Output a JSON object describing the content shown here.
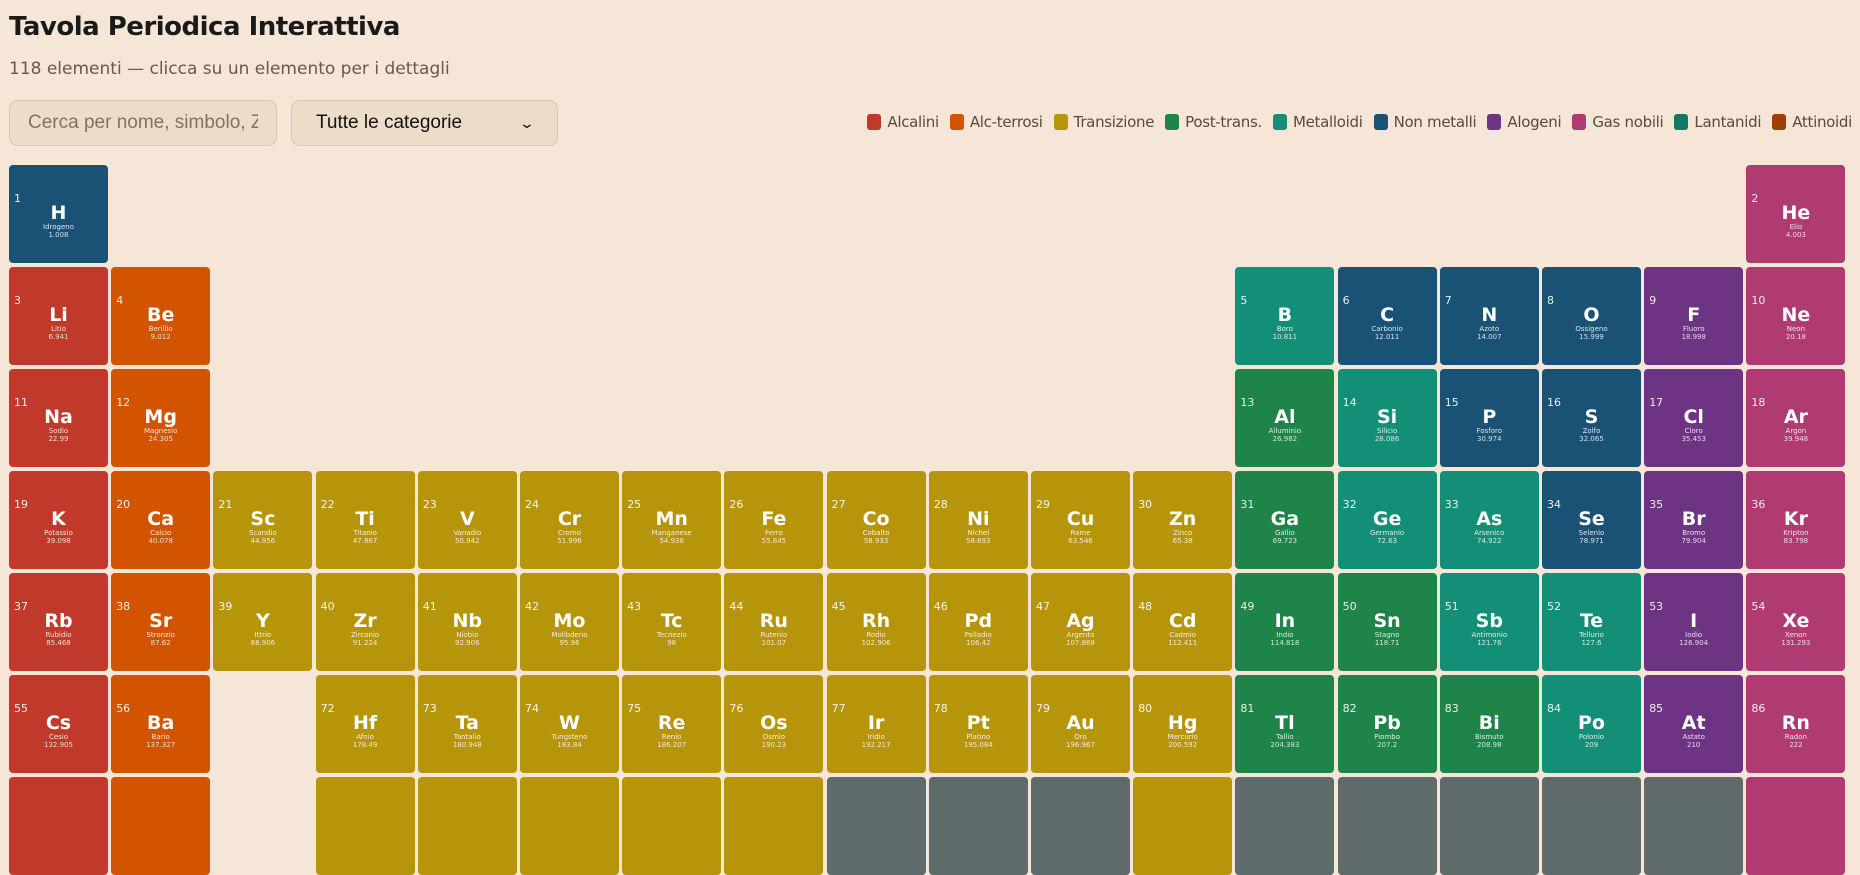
{
  "header": {
    "title": "Tavola Periodica Interattiva",
    "subtitle": "118 elementi — clicca su un elemento per i dettagli"
  },
  "controls": {
    "search_placeholder": "Cerca per nome, simbolo, Z",
    "search_value": "",
    "category_select": "Tutte le categorie",
    "chevron_icon": "chevron-down-icon"
  },
  "categories": {
    "alk": {
      "label": "Alcalini",
      "color": "#c0392b"
    },
    "ae": {
      "label": "Alc-terrosi",
      "color": "#d35400"
    },
    "tr": {
      "label": "Transizione",
      "color": "#b7950b"
    },
    "pt": {
      "label": "Post-trans.",
      "color": "#1e8449"
    },
    "md": {
      "label": "Metalloidi",
      "color": "#148f77"
    },
    "nm": {
      "label": "Non metalli",
      "color": "#1a5276"
    },
    "hal": {
      "label": "Alogeni",
      "color": "#6c3483"
    },
    "ng": {
      "label": "Gas nobili",
      "color": "#b03a72"
    },
    "lan": {
      "label": "Lantanidi",
      "color": "#117a65"
    },
    "act": {
      "label": "Attinoidi",
      "color": "#a04000"
    },
    "unk": {
      "label": "",
      "color": "#5f6a6a"
    }
  },
  "legend_order": [
    "alk",
    "ae",
    "tr",
    "pt",
    "md",
    "nm",
    "hal",
    "ng",
    "lan",
    "act"
  ],
  "elements": [
    {
      "z": "1",
      "sym": "H",
      "name": "Idrogeno",
      "mass": "1.008",
      "cat": "nm",
      "r": 1,
      "c": 1
    },
    {
      "z": "2",
      "sym": "He",
      "name": "Elio",
      "mass": "4.003",
      "cat": "ng",
      "r": 1,
      "c": 18
    },
    {
      "z": "3",
      "sym": "Li",
      "name": "Litio",
      "mass": "6.941",
      "cat": "alk",
      "r": 2,
      "c": 1
    },
    {
      "z": "4",
      "sym": "Be",
      "name": "Berillio",
      "mass": "9.012",
      "cat": "ae",
      "r": 2,
      "c": 2
    },
    {
      "z": "5",
      "sym": "B",
      "name": "Boro",
      "mass": "10.811",
      "cat": "md",
      "r": 2,
      "c": 13
    },
    {
      "z": "6",
      "sym": "C",
      "name": "Carbonio",
      "mass": "12.011",
      "cat": "nm",
      "r": 2,
      "c": 14
    },
    {
      "z": "7",
      "sym": "N",
      "name": "Azoto",
      "mass": "14.007",
      "cat": "nm",
      "r": 2,
      "c": 15
    },
    {
      "z": "8",
      "sym": "O",
      "name": "Ossigeno",
      "mass": "15.999",
      "cat": "nm",
      "r": 2,
      "c": 16
    },
    {
      "z": "9",
      "sym": "F",
      "name": "Fluoro",
      "mass": "18.998",
      "cat": "hal",
      "r": 2,
      "c": 17
    },
    {
      "z": "10",
      "sym": "Ne",
      "name": "Neon",
      "mass": "20.18",
      "cat": "ng",
      "r": 2,
      "c": 18
    },
    {
      "z": "11",
      "sym": "Na",
      "name": "Sodio",
      "mass": "22.99",
      "cat": "alk",
      "r": 3,
      "c": 1
    },
    {
      "z": "12",
      "sym": "Mg",
      "name": "Magnesio",
      "mass": "24.305",
      "cat": "ae",
      "r": 3,
      "c": 2
    },
    {
      "z": "13",
      "sym": "Al",
      "name": "Alluminio",
      "mass": "26.982",
      "cat": "pt",
      "r": 3,
      "c": 13
    },
    {
      "z": "14",
      "sym": "Si",
      "name": "Silicio",
      "mass": "28.086",
      "cat": "md",
      "r": 3,
      "c": 14
    },
    {
      "z": "15",
      "sym": "P",
      "name": "Fosforo",
      "mass": "30.974",
      "cat": "nm",
      "r": 3,
      "c": 15
    },
    {
      "z": "16",
      "sym": "S",
      "name": "Zolfo",
      "mass": "32.065",
      "cat": "nm",
      "r": 3,
      "c": 16
    },
    {
      "z": "17",
      "sym": "Cl",
      "name": "Cloro",
      "mass": "35.453",
      "cat": "hal",
      "r": 3,
      "c": 17
    },
    {
      "z": "18",
      "sym": "Ar",
      "name": "Argon",
      "mass": "39.948",
      "cat": "ng",
      "r": 3,
      "c": 18
    },
    {
      "z": "19",
      "sym": "K",
      "name": "Potassio",
      "mass": "39.098",
      "cat": "alk",
      "r": 4,
      "c": 1
    },
    {
      "z": "20",
      "sym": "Ca",
      "name": "Calcio",
      "mass": "40.078",
      "cat": "ae",
      "r": 4,
      "c": 2
    },
    {
      "z": "21",
      "sym": "Sc",
      "name": "Scandio",
      "mass": "44.956",
      "cat": "tr",
      "r": 4,
      "c": 3
    },
    {
      "z": "22",
      "sym": "Ti",
      "name": "Titanio",
      "mass": "47.867",
      "cat": "tr",
      "r": 4,
      "c": 4
    },
    {
      "z": "23",
      "sym": "V",
      "name": "Vanadio",
      "mass": "50.942",
      "cat": "tr",
      "r": 4,
      "c": 5
    },
    {
      "z": "24",
      "sym": "Cr",
      "name": "Cromo",
      "mass": "51.996",
      "cat": "tr",
      "r": 4,
      "c": 6
    },
    {
      "z": "25",
      "sym": "Mn",
      "name": "Manganese",
      "mass": "54.938",
      "cat": "tr",
      "r": 4,
      "c": 7
    },
    {
      "z": "26",
      "sym": "Fe",
      "name": "Ferro",
      "mass": "55.845",
      "cat": "tr",
      "r": 4,
      "c": 8
    },
    {
      "z": "27",
      "sym": "Co",
      "name": "Cobalto",
      "mass": "58.933",
      "cat": "tr",
      "r": 4,
      "c": 9
    },
    {
      "z": "28",
      "sym": "Ni",
      "name": "Nichel",
      "mass": "58.693",
      "cat": "tr",
      "r": 4,
      "c": 10
    },
    {
      "z": "29",
      "sym": "Cu",
      "name": "Rame",
      "mass": "63.546",
      "cat": "tr",
      "r": 4,
      "c": 11
    },
    {
      "z": "30",
      "sym": "Zn",
      "name": "Zinco",
      "mass": "65.38",
      "cat": "tr",
      "r": 4,
      "c": 12
    },
    {
      "z": "31",
      "sym": "Ga",
      "name": "Gallio",
      "mass": "69.723",
      "cat": "pt",
      "r": 4,
      "c": 13
    },
    {
      "z": "32",
      "sym": "Ge",
      "name": "Germanio",
      "mass": "72.63",
      "cat": "md",
      "r": 4,
      "c": 14
    },
    {
      "z": "33",
      "sym": "As",
      "name": "Arsenico",
      "mass": "74.922",
      "cat": "md",
      "r": 4,
      "c": 15
    },
    {
      "z": "34",
      "sym": "Se",
      "name": "Selenio",
      "mass": "78.971",
      "cat": "nm",
      "r": 4,
      "c": 16
    },
    {
      "z": "35",
      "sym": "Br",
      "name": "Bromo",
      "mass": "79.904",
      "cat": "hal",
      "r": 4,
      "c": 17
    },
    {
      "z": "36",
      "sym": "Kr",
      "name": "Kripton",
      "mass": "83.798",
      "cat": "ng",
      "r": 4,
      "c": 18
    },
    {
      "z": "37",
      "sym": "Rb",
      "name": "Rubidio",
      "mass": "85.468",
      "cat": "alk",
      "r": 5,
      "c": 1
    },
    {
      "z": "38",
      "sym": "Sr",
      "name": "Stronzio",
      "mass": "87.62",
      "cat": "ae",
      "r": 5,
      "c": 2
    },
    {
      "z": "39",
      "sym": "Y",
      "name": "Ittrio",
      "mass": "88.906",
      "cat": "tr",
      "r": 5,
      "c": 3
    },
    {
      "z": "40",
      "sym": "Zr",
      "name": "Zirconio",
      "mass": "91.224",
      "cat": "tr",
      "r": 5,
      "c": 4
    },
    {
      "z": "41",
      "sym": "Nb",
      "name": "Niobio",
      "mass": "92.906",
      "cat": "tr",
      "r": 5,
      "c": 5
    },
    {
      "z": "42",
      "sym": "Mo",
      "name": "Molibdeno",
      "mass": "95.96",
      "cat": "tr",
      "r": 5,
      "c": 6
    },
    {
      "z": "43",
      "sym": "Tc",
      "name": "Tecnezio",
      "mass": "98",
      "cat": "tr",
      "r": 5,
      "c": 7
    },
    {
      "z": "44",
      "sym": "Ru",
      "name": "Rutenio",
      "mass": "101.07",
      "cat": "tr",
      "r": 5,
      "c": 8
    },
    {
      "z": "45",
      "sym": "Rh",
      "name": "Rodio",
      "mass": "102.906",
      "cat": "tr",
      "r": 5,
      "c": 9
    },
    {
      "z": "46",
      "sym": "Pd",
      "name": "Palladio",
      "mass": "106.42",
      "cat": "tr",
      "r": 5,
      "c": 10
    },
    {
      "z": "47",
      "sym": "Ag",
      "name": "Argento",
      "mass": "107.868",
      "cat": "tr",
      "r": 5,
      "c": 11
    },
    {
      "z": "48",
      "sym": "Cd",
      "name": "Cadmio",
      "mass": "112.411",
      "cat": "tr",
      "r": 5,
      "c": 12
    },
    {
      "z": "49",
      "sym": "In",
      "name": "Indio",
      "mass": "114.818",
      "cat": "pt",
      "r": 5,
      "c": 13
    },
    {
      "z": "50",
      "sym": "Sn",
      "name": "Stagno",
      "mass": "118.71",
      "cat": "pt",
      "r": 5,
      "c": 14
    },
    {
      "z": "51",
      "sym": "Sb",
      "name": "Antimonio",
      "mass": "121.76",
      "cat": "md",
      "r": 5,
      "c": 15
    },
    {
      "z": "52",
      "sym": "Te",
      "name": "Tellurio",
      "mass": "127.6",
      "cat": "md",
      "r": 5,
      "c": 16
    },
    {
      "z": "53",
      "sym": "I",
      "name": "Iodio",
      "mass": "126.904",
      "cat": "hal",
      "r": 5,
      "c": 17
    },
    {
      "z": "54",
      "sym": "Xe",
      "name": "Xenon",
      "mass": "131.293",
      "cat": "ng",
      "r": 5,
      "c": 18
    },
    {
      "z": "55",
      "sym": "Cs",
      "name": "Cesio",
      "mass": "132.905",
      "cat": "alk",
      "r": 6,
      "c": 1
    },
    {
      "z": "56",
      "sym": "Ba",
      "name": "Bario",
      "mass": "137.327",
      "cat": "ae",
      "r": 6,
      "c": 2
    },
    {
      "z": "72",
      "sym": "Hf",
      "name": "Afnio",
      "mass": "178.49",
      "cat": "tr",
      "r": 6,
      "c": 4
    },
    {
      "z": "73",
      "sym": "Ta",
      "name": "Tantalio",
      "mass": "180.948",
      "cat": "tr",
      "r": 6,
      "c": 5
    },
    {
      "z": "74",
      "sym": "W",
      "name": "Tungsteno",
      "mass": "183.84",
      "cat": "tr",
      "r": 6,
      "c": 6
    },
    {
      "z": "75",
      "sym": "Re",
      "name": "Renio",
      "mass": "186.207",
      "cat": "tr",
      "r": 6,
      "c": 7
    },
    {
      "z": "76",
      "sym": "Os",
      "name": "Osmio",
      "mass": "190.23",
      "cat": "tr",
      "r": 6,
      "c": 8
    },
    {
      "z": "77",
      "sym": "Ir",
      "name": "Iridio",
      "mass": "192.217",
      "cat": "tr",
      "r": 6,
      "c": 9
    },
    {
      "z": "78",
      "sym": "Pt",
      "name": "Platino",
      "mass": "195.084",
      "cat": "tr",
      "r": 6,
      "c": 10
    },
    {
      "z": "79",
      "sym": "Au",
      "name": "Oro",
      "mass": "196.967",
      "cat": "tr",
      "r": 6,
      "c": 11
    },
    {
      "z": "80",
      "sym": "Hg",
      "name": "Mercurio",
      "mass": "200.592",
      "cat": "tr",
      "r": 6,
      "c": 12
    },
    {
      "z": "81",
      "sym": "Tl",
      "name": "Tallio",
      "mass": "204.383",
      "cat": "pt",
      "r": 6,
      "c": 13
    },
    {
      "z": "82",
      "sym": "Pb",
      "name": "Piombo",
      "mass": "207.2",
      "cat": "pt",
      "r": 6,
      "c": 14
    },
    {
      "z": "83",
      "sym": "Bi",
      "name": "Bismuto",
      "mass": "208.98",
      "cat": "pt",
      "r": 6,
      "c": 15
    },
    {
      "z": "84",
      "sym": "Po",
      "name": "Polonio",
      "mass": "209",
      "cat": "md",
      "r": 6,
      "c": 16
    },
    {
      "z": "85",
      "sym": "At",
      "name": "Astato",
      "mass": "210",
      "cat": "hal",
      "r": 6,
      "c": 17
    },
    {
      "z": "86",
      "sym": "Rn",
      "name": "Radon",
      "mass": "222",
      "cat": "ng",
      "r": 6,
      "c": 18
    },
    {
      "cat": "alk",
      "r": 7,
      "c": 1
    },
    {
      "cat": "ae",
      "r": 7,
      "c": 2
    },
    {
      "cat": "tr",
      "r": 7,
      "c": 4
    },
    {
      "cat": "tr",
      "r": 7,
      "c": 5
    },
    {
      "cat": "tr",
      "r": 7,
      "c": 6
    },
    {
      "cat": "tr",
      "r": 7,
      "c": 7
    },
    {
      "cat": "tr",
      "r": 7,
      "c": 8
    },
    {
      "cat": "unk",
      "r": 7,
      "c": 9
    },
    {
      "cat": "unk",
      "r": 7,
      "c": 10
    },
    {
      "cat": "unk",
      "r": 7,
      "c": 11
    },
    {
      "cat": "tr",
      "r": 7,
      "c": 12
    },
    {
      "cat": "unk",
      "r": 7,
      "c": 13
    },
    {
      "cat": "unk",
      "r": 7,
      "c": 14
    },
    {
      "cat": "unk",
      "r": 7,
      "c": 15
    },
    {
      "cat": "unk",
      "r": 7,
      "c": 16
    },
    {
      "cat": "unk",
      "r": 7,
      "c": 17
    },
    {
      "cat": "ng",
      "r": 7,
      "c": 18
    }
  ]
}
